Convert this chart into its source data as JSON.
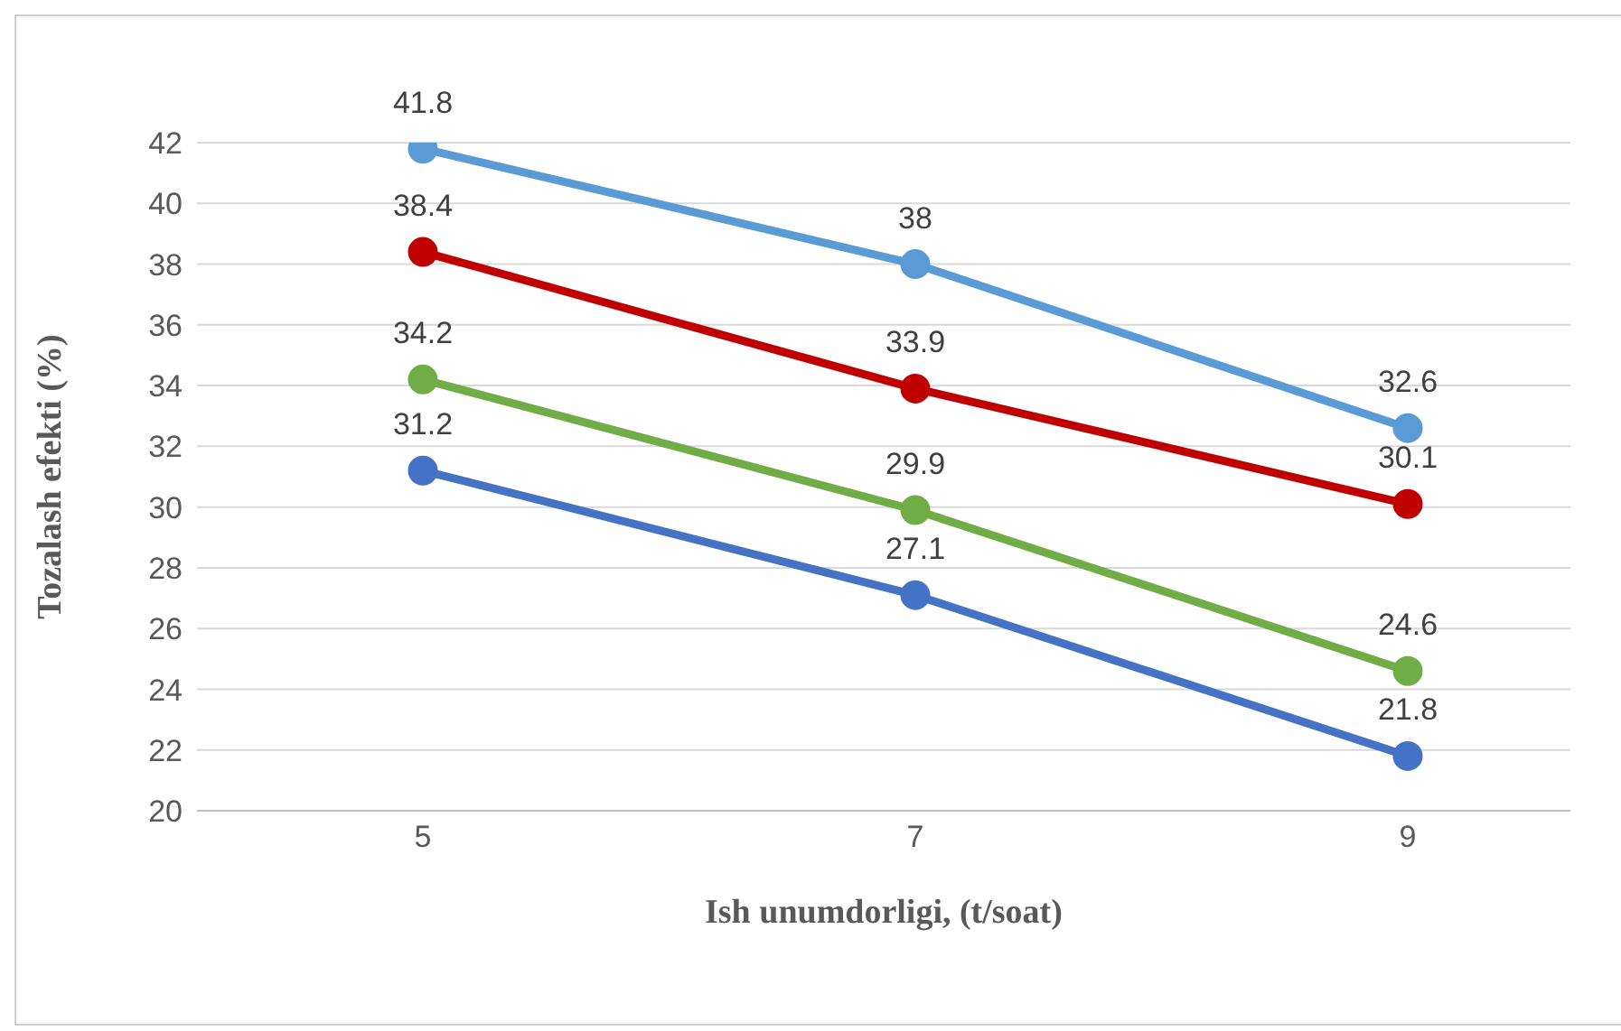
{
  "chart_data": {
    "type": "line",
    "xlabel": "Ish unumdorligi,  (t/soat)",
    "ylabel": "Tozalash efekti (%)",
    "categories": [
      "5",
      "7",
      "9"
    ],
    "series": [
      {
        "color": "#5b9bd5",
        "values": [
          41.8,
          38,
          32.6
        ]
      },
      {
        "color": "#c00000",
        "values": [
          38.4,
          33.9,
          30.1
        ]
      },
      {
        "color": "#70ad47",
        "values": [
          34.2,
          29.9,
          24.6
        ]
      },
      {
        "color": "#4472c4",
        "values": [
          31.2,
          27.1,
          21.8
        ]
      }
    ],
    "ylim": [
      20,
      42
    ],
    "yticks": [
      20,
      22,
      24,
      26,
      28,
      30,
      32,
      34,
      36,
      38,
      40,
      42
    ],
    "grid": "y",
    "marker": "circle",
    "data_labels": true
  }
}
